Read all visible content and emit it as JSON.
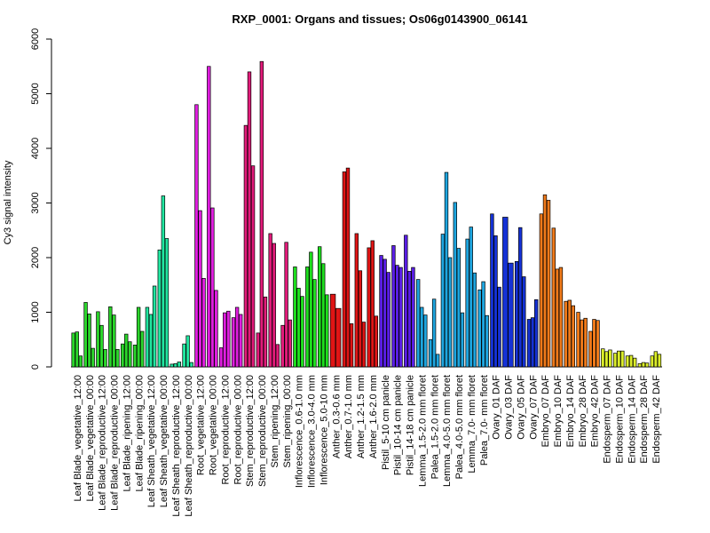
{
  "chart_data": {
    "type": "bar",
    "title": "RXP_0001: Organs and tissues; Os06g0143900_06141",
    "xlabel": "",
    "ylabel": "Cy3 signal intensity",
    "ylim": [
      0,
      6000
    ],
    "yticks": [
      0,
      1000,
      2000,
      3000,
      4000,
      5000,
      6000
    ],
    "grid": false,
    "legend": "none",
    "categories": [
      "Leaf Blade_vegetative_12:00",
      "Leaf Blade_vegetative_00:00",
      "Leaf Blade_reproductive_12:00",
      "Leaf Blade_reproductive_00:00",
      "Leaf Blade_ripening_12:00",
      "Leaf Blade_ripening_00:00",
      "Leaf Sheath_vegetative_12:00",
      "Leaf Sheath_vegetative_00:00",
      "Leaf Sheath_reproductive_12:00",
      "Leaf Sheath_reproductive_00:00",
      "Root_vegetative_12:00",
      "Root_vegetative_00:00",
      "Root_reproductive_12:00",
      "Root_reproductive_00:00",
      "Stem_reproductive_12:00",
      "Stem_reproductive_00:00",
      "Stem_ripening_12:00",
      "Stem_ripening_00:00",
      "Inflorescence_0.6-1.0 mm",
      "Inflorescence_3.0-4.0 mm",
      "Inflorescence_5.0-10 mm",
      "Anther_0.3-0.6 mm",
      "Anther_0.7-1.0 mm",
      "Anther_1.2-1.5 mm",
      "Anther_1.6-2.0 mm",
      "Pistil_5-10 cm panicle",
      "Pistil_10-14 cm panicle",
      "Pistil_14-18 cm panicle",
      "Lemma_1.5-2.0 mm floret",
      "Palea_1.5-2.0 mm floret",
      "Lemma_4.0-5.0 mm floret",
      "Palea_4.0-5.0 mm floret",
      "Lemma_7.0- mm floret",
      "Palea_7.0- mm floret",
      "Ovary_01 DAF",
      "Ovary_03 DAF",
      "Ovary_05 DAF",
      "Ovary_07 DAF",
      "Embryo_07 DAF",
      "Embryo_10 DAF",
      "Embryo_14 DAF",
      "Embryo_28 DAF",
      "Embryo_42 DAF",
      "Endosperm_07 DAF",
      "Endosperm_10 DAF",
      "Endosperm_14 DAF",
      "Endosperm_28 DAF",
      "Endosperm_42 DAF"
    ],
    "colors": [
      "#2bd62b",
      "#2bd62b",
      "#2bd62b",
      "#2bd62b",
      "#2bd62b",
      "#2bd62b",
      "#21e6a0",
      "#21e6a0",
      "#21e6a0",
      "#21e6a0",
      "#e01ee0",
      "#e01ee0",
      "#e01ee0",
      "#e01ee0",
      "#e21b7a",
      "#e21b7a",
      "#e21b7a",
      "#e21b7a",
      "#1ee01e",
      "#1ee01e",
      "#1ee01e",
      "#e01515",
      "#e01515",
      "#e01515",
      "#e01515",
      "#5a1ee6",
      "#5a1ee6",
      "#5a1ee6",
      "#1ea6e0",
      "#1ea6e0",
      "#1ea6e0",
      "#1ea6e0",
      "#1ea6e0",
      "#1ea6e0",
      "#1532d6",
      "#1532d6",
      "#1532d6",
      "#1532d6",
      "#f07a1a",
      "#f07a1a",
      "#f07a1a",
      "#f07a1a",
      "#f07a1a",
      "#dcee2a",
      "#dcee2a",
      "#dcee2a",
      "#dcee2a",
      "#dcee2a"
    ],
    "groups": [
      [
        620,
        640,
        200
      ],
      [
        1180,
        970,
        340
      ],
      [
        1010,
        760,
        320
      ],
      [
        1100,
        950,
        320
      ],
      [
        420,
        600,
        460
      ],
      [
        400,
        1090,
        650
      ],
      [
        1090,
        960,
        1480
      ],
      [
        2140,
        3130,
        2350
      ],
      [
        50,
        60,
        90
      ],
      [
        420,
        570,
        80
      ],
      [
        4800,
        2860,
        1620
      ],
      [
        5500,
        2910,
        1400
      ],
      [
        350,
        990,
        1020
      ],
      [
        900,
        1090,
        960
      ],
      [
        4420,
        5400,
        3680
      ],
      [
        620,
        5590,
        1280
      ],
      [
        2440,
        2260,
        410
      ],
      [
        760,
        2280,
        860
      ],
      [
        1830,
        1440,
        1290
      ],
      [
        1830,
        2100,
        1600
      ],
      [
        2200,
        1890,
        1320
      ],
      [
        1330,
        1070
      ],
      [
        3570,
        3640,
        790
      ],
      [
        2440,
        1760,
        820
      ],
      [
        2180,
        2310,
        930
      ],
      [
        2040,
        1970,
        1730
      ],
      [
        2220,
        1860,
        1820
      ],
      [
        2410,
        1750,
        1820
      ],
      [
        1600,
        1090,
        950
      ],
      [
        500,
        1240,
        230
      ],
      [
        2430,
        3560,
        2000
      ],
      [
        3010,
        2170,
        990
      ],
      [
        2340,
        2560,
        1720
      ],
      [
        1410,
        1560,
        940
      ],
      [
        2800,
        2400,
        1460
      ],
      [
        2740,
        1900
      ],
      [
        1930,
        2550,
        1650
      ],
      [
        870,
        900,
        1230
      ],
      [
        2800,
        3150,
        3050
      ],
      [
        2540,
        1790,
        1820
      ],
      [
        1200,
        1220,
        1120
      ],
      [
        1000,
        860,
        890
      ],
      [
        650,
        870,
        850
      ],
      [
        330,
        280,
        310
      ],
      [
        250,
        290,
        290
      ],
      [
        200,
        210,
        160
      ],
      [
        60,
        80,
        70
      ],
      [
        200,
        280,
        230
      ]
    ]
  }
}
